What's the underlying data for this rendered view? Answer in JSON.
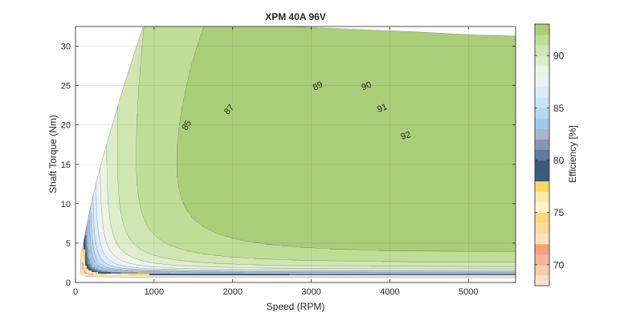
{
  "chart_data": {
    "type": "heatmap",
    "subtype": "filled-contour",
    "title": "XPM 40A 96V",
    "xlabel": "Speed (RPM)",
    "ylabel": "Shaft Torque (Nm)",
    "colorbar_label": "Efficiency [%]",
    "xlim": [
      0,
      5600
    ],
    "ylim": [
      0,
      32.5
    ],
    "x_ticks": [
      0,
      1000,
      2000,
      3000,
      4000,
      5000
    ],
    "x_tick_labels": [
      "0",
      "1000",
      "2000",
      "3000",
      "4000",
      "5000"
    ],
    "y_ticks": [
      0,
      5,
      10,
      15,
      20,
      25,
      30
    ],
    "y_tick_labels": [
      "0",
      "5",
      "10",
      "15",
      "20",
      "25",
      "30"
    ],
    "colorbar_range": [
      68,
      93
    ],
    "colorbar_ticks": [
      70,
      75,
      80,
      85,
      90
    ],
    "colorbar_tick_labels": [
      "70",
      "75",
      "80",
      "85",
      "90"
    ],
    "grid": true,
    "levels": [
      {
        "min": 68,
        "max": 69,
        "color": "#FBE0CC"
      },
      {
        "min": 69,
        "max": 70,
        "color": "#F8CBB0"
      },
      {
        "min": 70,
        "max": 71,
        "color": "#F5B696"
      },
      {
        "min": 71,
        "max": 72,
        "color": "#F3A27C"
      },
      {
        "min": 72,
        "max": 73,
        "color": "#FBE4BA"
      },
      {
        "min": 73,
        "max": 74,
        "color": "#FBDB9E"
      },
      {
        "min": 74,
        "max": 75,
        "color": "#F9D77C"
      },
      {
        "min": 75,
        "max": 76,
        "color": "#FFF1C9"
      },
      {
        "min": 76,
        "max": 77,
        "color": "#FBE9AE"
      },
      {
        "min": 77,
        "max": 78,
        "color": "#F6D863"
      },
      {
        "min": 78,
        "max": 79,
        "color": "#3A5C84"
      },
      {
        "min": 79,
        "max": 80,
        "color": "#3C5A7F"
      },
      {
        "min": 80,
        "max": 81,
        "color": "#5E7AA0"
      },
      {
        "min": 81,
        "max": 82,
        "color": "#8797B2"
      },
      {
        "min": 82,
        "max": 83,
        "color": "#A9B6C9"
      },
      {
        "min": 83,
        "max": 84,
        "color": "#9FCAE9"
      },
      {
        "min": 84,
        "max": 85,
        "color": "#B6D9F1"
      },
      {
        "min": 85,
        "max": 86,
        "color": "#CBE4F5"
      },
      {
        "min": 86,
        "max": 87,
        "color": "#DCECF8"
      },
      {
        "min": 87,
        "max": 88,
        "color": "#EBF3FA"
      },
      {
        "min": 88,
        "max": 89,
        "color": "#ECF5E2"
      },
      {
        "min": 89,
        "max": 90,
        "color": "#DDEDCA"
      },
      {
        "min": 90,
        "max": 91,
        "color": "#CFE6B3"
      },
      {
        "min": 91,
        "max": 92,
        "color": "#BEDD96"
      },
      {
        "min": 92,
        "max": 93,
        "color": "#A9CE7A"
      }
    ],
    "contour_labels": [
      {
        "text": "85",
        "x": 1410,
        "y": 20.0,
        "angle": -58
      },
      {
        "text": "87",
        "x": 1950,
        "y": 22.0,
        "angle": -50
      },
      {
        "text": "89",
        "x": 3080,
        "y": 25.0,
        "angle": -28
      },
      {
        "text": "90",
        "x": 3700,
        "y": 25.0,
        "angle": -22
      },
      {
        "text": "91",
        "x": 3900,
        "y": 22.2,
        "angle": -20
      },
      {
        "text": "92",
        "x": 4200,
        "y": 18.7,
        "angle": -16
      }
    ]
  }
}
